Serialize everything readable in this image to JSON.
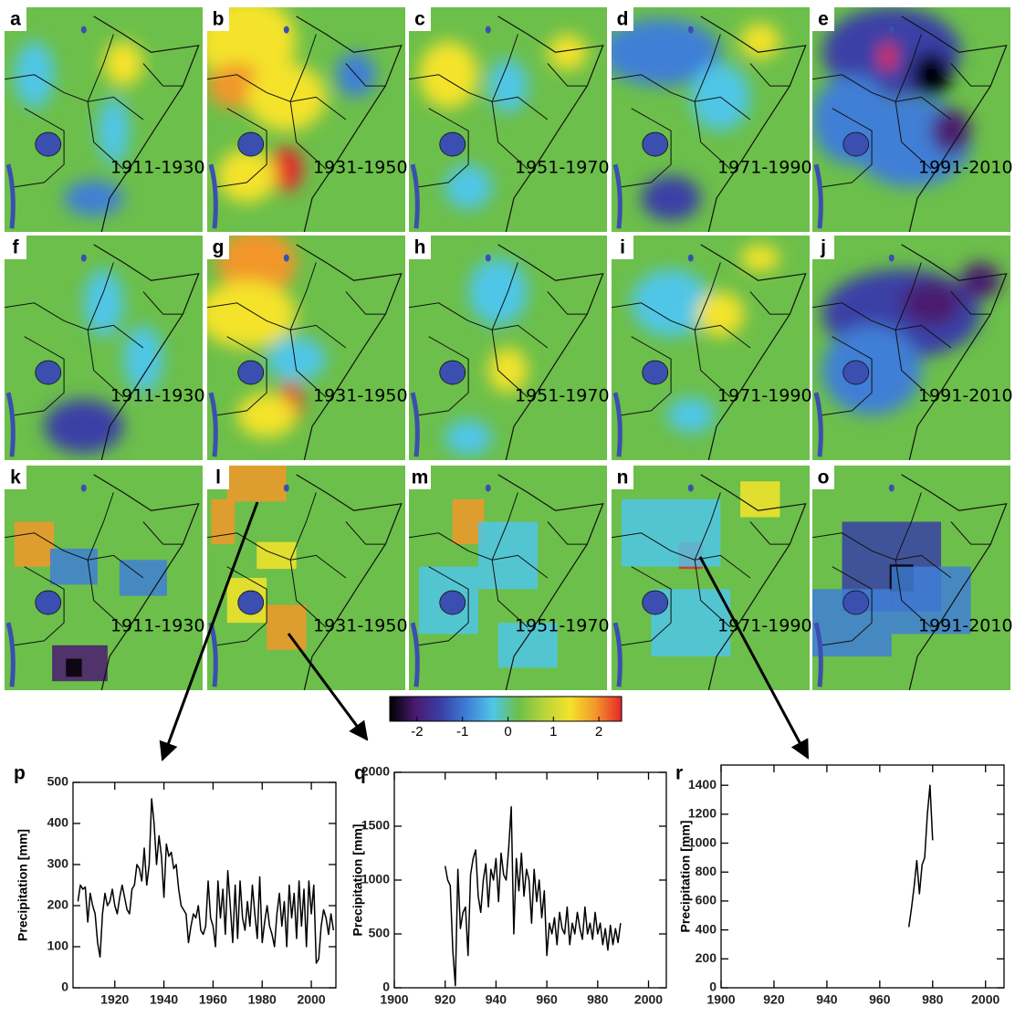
{
  "maps": [
    {
      "letter": "a",
      "period": "1911-1930"
    },
    {
      "letter": "b",
      "period": "1931-1950"
    },
    {
      "letter": "c",
      "period": "1951-1970"
    },
    {
      "letter": "d",
      "period": "1971-1990"
    },
    {
      "letter": "e",
      "period": "1991-2010"
    },
    {
      "letter": "f",
      "period": "1911-1930"
    },
    {
      "letter": "g",
      "period": "1931-1950"
    },
    {
      "letter": "h",
      "period": "1951-1970"
    },
    {
      "letter": "i",
      "period": "1971-1990"
    },
    {
      "letter": "j",
      "period": "1991-2010"
    },
    {
      "letter": "k",
      "period": "1911-1930"
    },
    {
      "letter": "l",
      "period": "1931-1950"
    },
    {
      "letter": "m",
      "period": "1951-1970"
    },
    {
      "letter": "n",
      "period": "1971-1990"
    },
    {
      "letter": "o",
      "period": "1991-2010"
    }
  ],
  "colorbar": {
    "lim": [
      -2.6,
      2.5
    ],
    "ticks": [
      -2,
      -1,
      0,
      1,
      2
    ],
    "colors": [
      "#000000",
      "#4a1a70",
      "#3a3fa6",
      "#3f7fd6",
      "#4fc6e8",
      "#6cbf4a",
      "#b8d43c",
      "#f4e32a",
      "#f2962a",
      "#e6262a"
    ]
  },
  "chart_data": [
    {
      "type": "line",
      "letter": "p",
      "y_label": "Precipitation [mm]",
      "color": "#000000",
      "xlim": [
        1903,
        2010
      ],
      "xticks": [
        1920,
        1940,
        1960,
        1980,
        2000
      ],
      "ylim": [
        0,
        500
      ],
      "yticks": [
        0,
        100,
        200,
        300,
        400,
        500
      ],
      "x": [
        1905,
        1906,
        1907,
        1908,
        1909,
        1910,
        1911,
        1912,
        1913,
        1914,
        1915,
        1916,
        1917,
        1918,
        1919,
        1920,
        1921,
        1922,
        1923,
        1924,
        1925,
        1926,
        1927,
        1928,
        1929,
        1930,
        1931,
        1932,
        1933,
        1934,
        1935,
        1936,
        1937,
        1938,
        1939,
        1940,
        1941,
        1942,
        1943,
        1944,
        1945,
        1946,
        1947,
        1948,
        1949,
        1950,
        1951,
        1952,
        1953,
        1954,
        1955,
        1956,
        1957,
        1958,
        1959,
        1960,
        1961,
        1962,
        1963,
        1964,
        1965,
        1966,
        1967,
        1968,
        1969,
        1970,
        1971,
        1972,
        1973,
        1974,
        1975,
        1976,
        1977,
        1978,
        1979,
        1980,
        1981,
        1982,
        1983,
        1984,
        1985,
        1986,
        1987,
        1988,
        1989,
        1990,
        1991,
        1992,
        1993,
        1994,
        1995,
        1996,
        1997,
        1998,
        1999,
        2000,
        2001,
        2002,
        2003,
        2004,
        2005,
        2006,
        2007,
        2008,
        2009
      ],
      "values": [
        210,
        250,
        240,
        245,
        160,
        230,
        200,
        180,
        110,
        75,
        180,
        230,
        200,
        210,
        240,
        200,
        180,
        220,
        250,
        220,
        190,
        180,
        240,
        250,
        300,
        290,
        260,
        340,
        250,
        300,
        460,
        400,
        300,
        370,
        320,
        220,
        350,
        320,
        330,
        290,
        300,
        240,
        200,
        190,
        180,
        110,
        150,
        180,
        170,
        200,
        140,
        130,
        150,
        260,
        170,
        150,
        100,
        260,
        170,
        240,
        130,
        285,
        200,
        110,
        250,
        120,
        260,
        170,
        140,
        210,
        150,
        250,
        180,
        120,
        270,
        110,
        160,
        200,
        150,
        130,
        100,
        180,
        230,
        150,
        210,
        100,
        250,
        170,
        230,
        120,
        260,
        150,
        240,
        100,
        260,
        180,
        250,
        60,
        70,
        150,
        190,
        170,
        130,
        180,
        140
      ]
    },
    {
      "type": "line",
      "letter": "q",
      "y_label": "Precipitation [mm]",
      "color": "#000000",
      "xlim": [
        1900,
        2007
      ],
      "xticks": [
        1900,
        {
          "value": 1920,
          "label": "920"
        },
        {
          "value": 1940,
          "label": "940"
        },
        {
          "value": 1960,
          "label": "960"
        },
        {
          "value": 1980,
          "label": "980"
        },
        2000
      ],
      "ylim": [
        0,
        2000
      ],
      "yticks": [
        0,
        500,
        1000,
        1500,
        2000
      ],
      "x": [
        1920,
        1921,
        1922,
        1923,
        1924,
        1925,
        1926,
        1927,
        1928,
        1929,
        1930,
        1931,
        1932,
        1933,
        1934,
        1935,
        1936,
        1937,
        1938,
        1939,
        1940,
        1941,
        1942,
        1943,
        1944,
        1945,
        1946,
        1947,
        1948,
        1949,
        1950,
        1951,
        1952,
        1953,
        1954,
        1955,
        1956,
        1957,
        1958,
        1959,
        1960,
        1961,
        1962,
        1963,
        1964,
        1965,
        1966,
        1967,
        1968,
        1969,
        1970,
        1971,
        1972,
        1973,
        1974,
        1975,
        1976,
        1977,
        1978,
        1979,
        1980,
        1981,
        1982,
        1983,
        1984,
        1985,
        1986,
        1987,
        1988,
        1989
      ],
      "values": [
        1130,
        1000,
        950,
        350,
        20,
        1100,
        550,
        700,
        750,
        300,
        1050,
        1200,
        1280,
        850,
        700,
        1000,
        1150,
        750,
        1100,
        1000,
        1200,
        800,
        1250,
        1050,
        1000,
        1300,
        1680,
        500,
        1200,
        900,
        1250,
        850,
        1100,
        1000,
        600,
        1100,
        800,
        1000,
        650,
        900,
        300,
        600,
        500,
        650,
        400,
        700,
        550,
        500,
        750,
        400,
        600,
        500,
        700,
        550,
        450,
        750,
        500,
        600,
        450,
        700,
        500,
        600,
        400,
        550,
        350,
        580,
        400,
        550,
        420,
        600
      ]
    },
    {
      "type": "line",
      "letter": "r",
      "y_label": "Precipitation [mm]",
      "color": "#000000",
      "xlim": [
        1900,
        2007
      ],
      "xticks": [
        1900,
        {
          "value": 1920,
          "label": "920"
        },
        {
          "value": 1940,
          "label": "940"
        },
        {
          "value": 1960,
          "label": "960"
        },
        {
          "value": 1980,
          "label": "980"
        },
        2000
      ],
      "ylim": [
        0,
        1540
      ],
      "yticks": [
        0,
        200,
        400,
        600,
        800,
        1000,
        1200,
        1400
      ],
      "x": [
        1971,
        1972,
        1973,
        1974,
        1975,
        1976,
        1977,
        1978,
        1979,
        1980
      ],
      "values": [
        420,
        550,
        700,
        880,
        650,
        850,
        900,
        1200,
        1400,
        1020
      ]
    }
  ]
}
